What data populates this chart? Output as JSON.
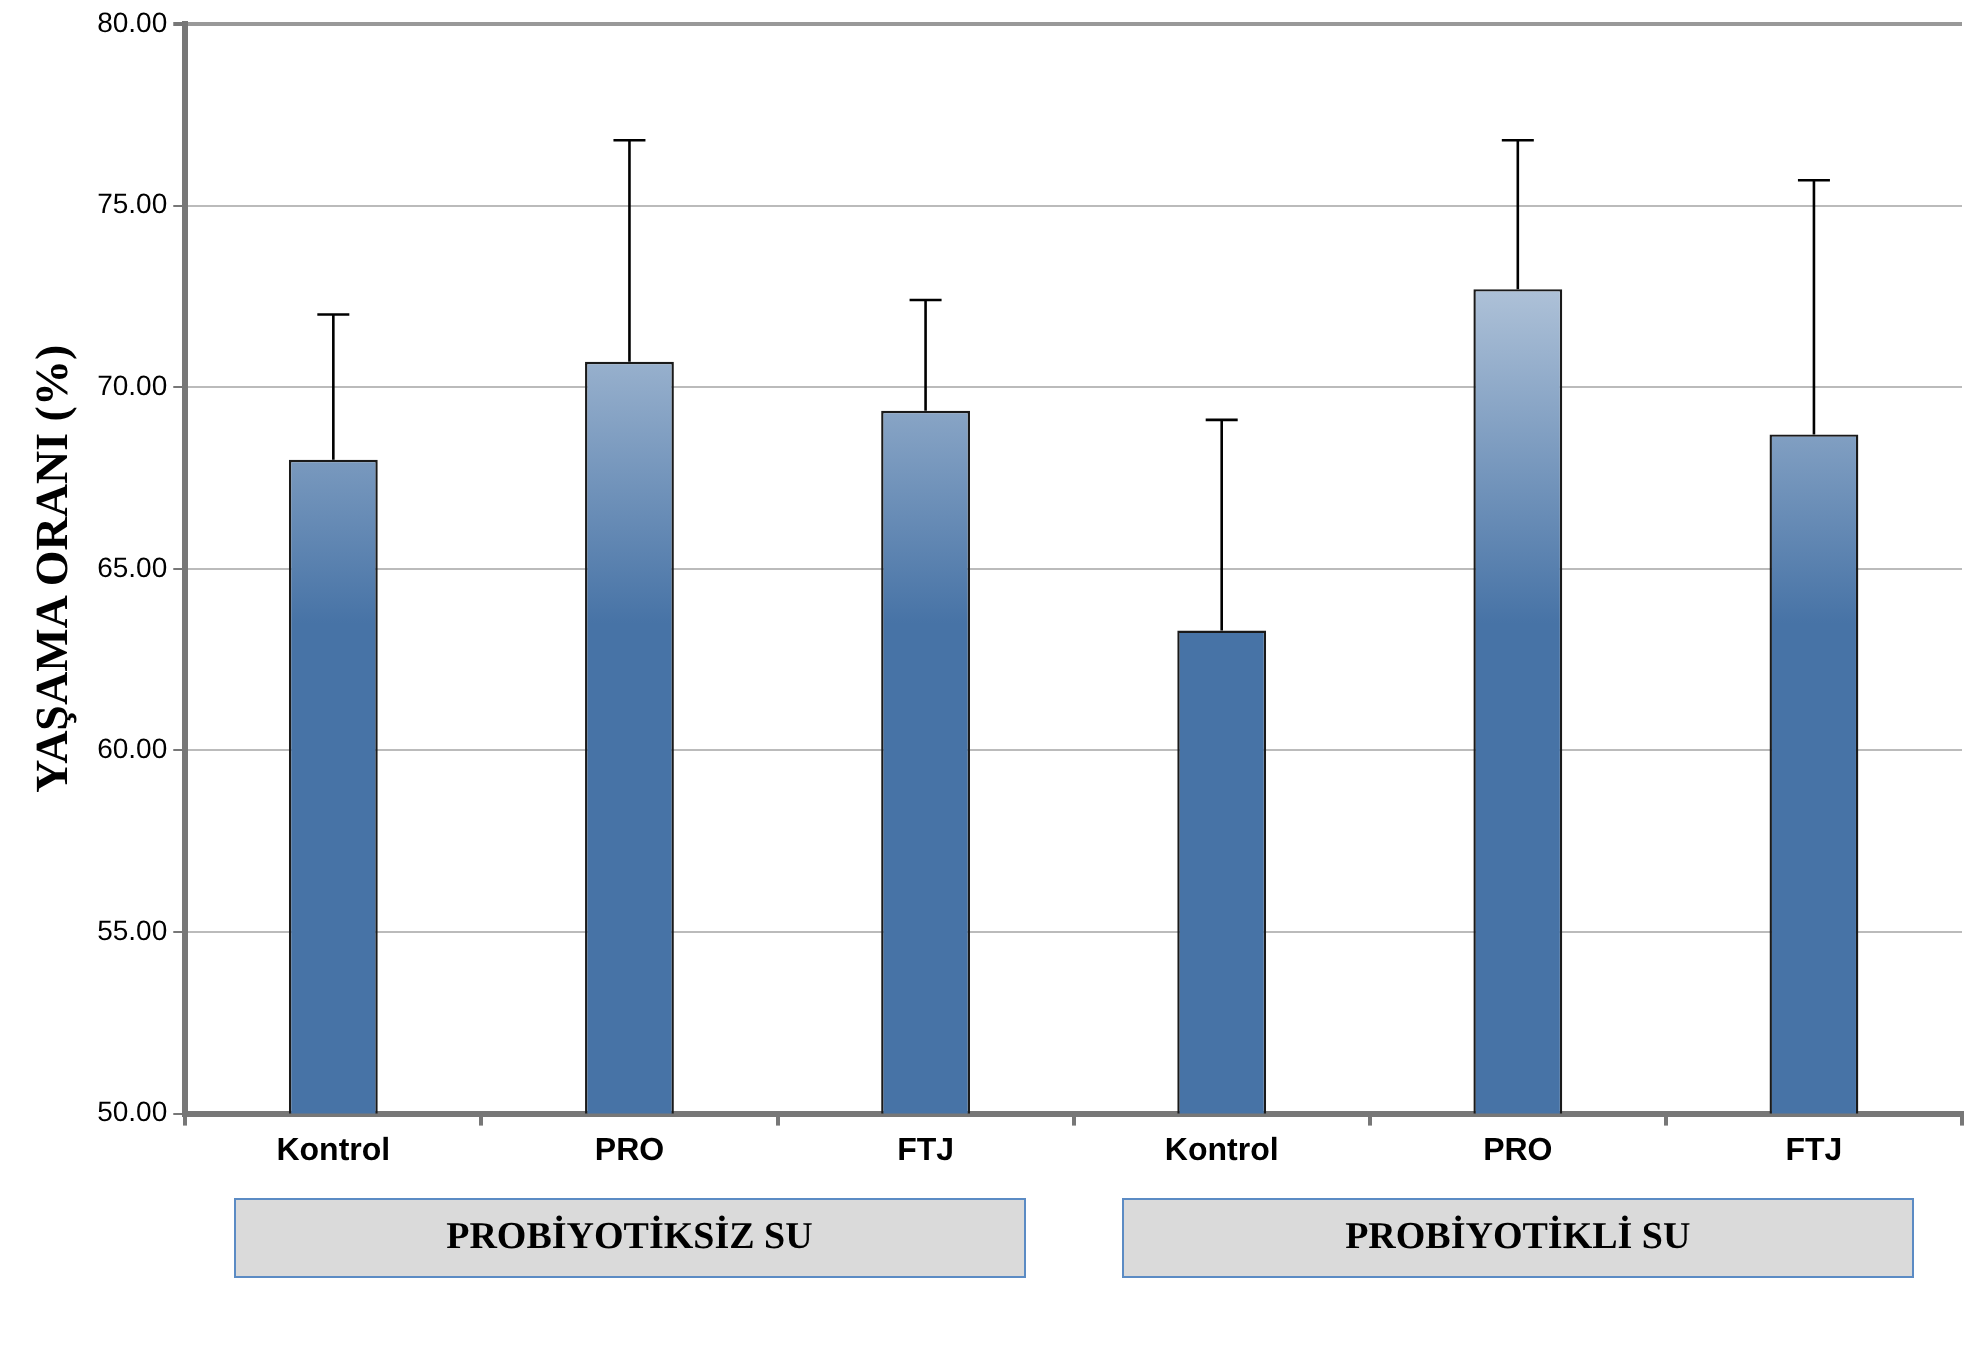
{
  "chart_data": {
    "type": "bar",
    "ylabel": "YAŞAMA ORANI (%)",
    "categories": [
      "Kontrol",
      "PRO",
      "FTJ",
      "Kontrol",
      "PRO",
      "FTJ"
    ],
    "values": [
      68.0,
      70.7,
      69.35,
      63.3,
      72.7,
      68.7
    ],
    "errors": [
      [
        68.0,
        72.0
      ],
      [
        70.7,
        76.8
      ],
      [
        69.35,
        72.4
      ],
      [
        63.3,
        69.1
      ],
      [
        72.7,
        76.8
      ],
      [
        68.7,
        75.7
      ]
    ],
    "color": "#4773a6",
    "ylim": [
      50,
      80
    ],
    "yticks": [
      {
        "value": 50,
        "label": "50.00"
      },
      {
        "value": 55,
        "label": "55.00"
      },
      {
        "value": 60,
        "label": "60.00"
      },
      {
        "value": 65,
        "label": "65.00"
      },
      {
        "value": 70,
        "label": "70.00"
      },
      {
        "value": 75,
        "label": "75.00"
      },
      {
        "value": 80,
        "label": "80.00"
      }
    ],
    "grid": "y",
    "legend": false,
    "annotations": [
      "PROBİYOTİKSİZ SU",
      "PROBİYOTİKLİ SU"
    ]
  }
}
